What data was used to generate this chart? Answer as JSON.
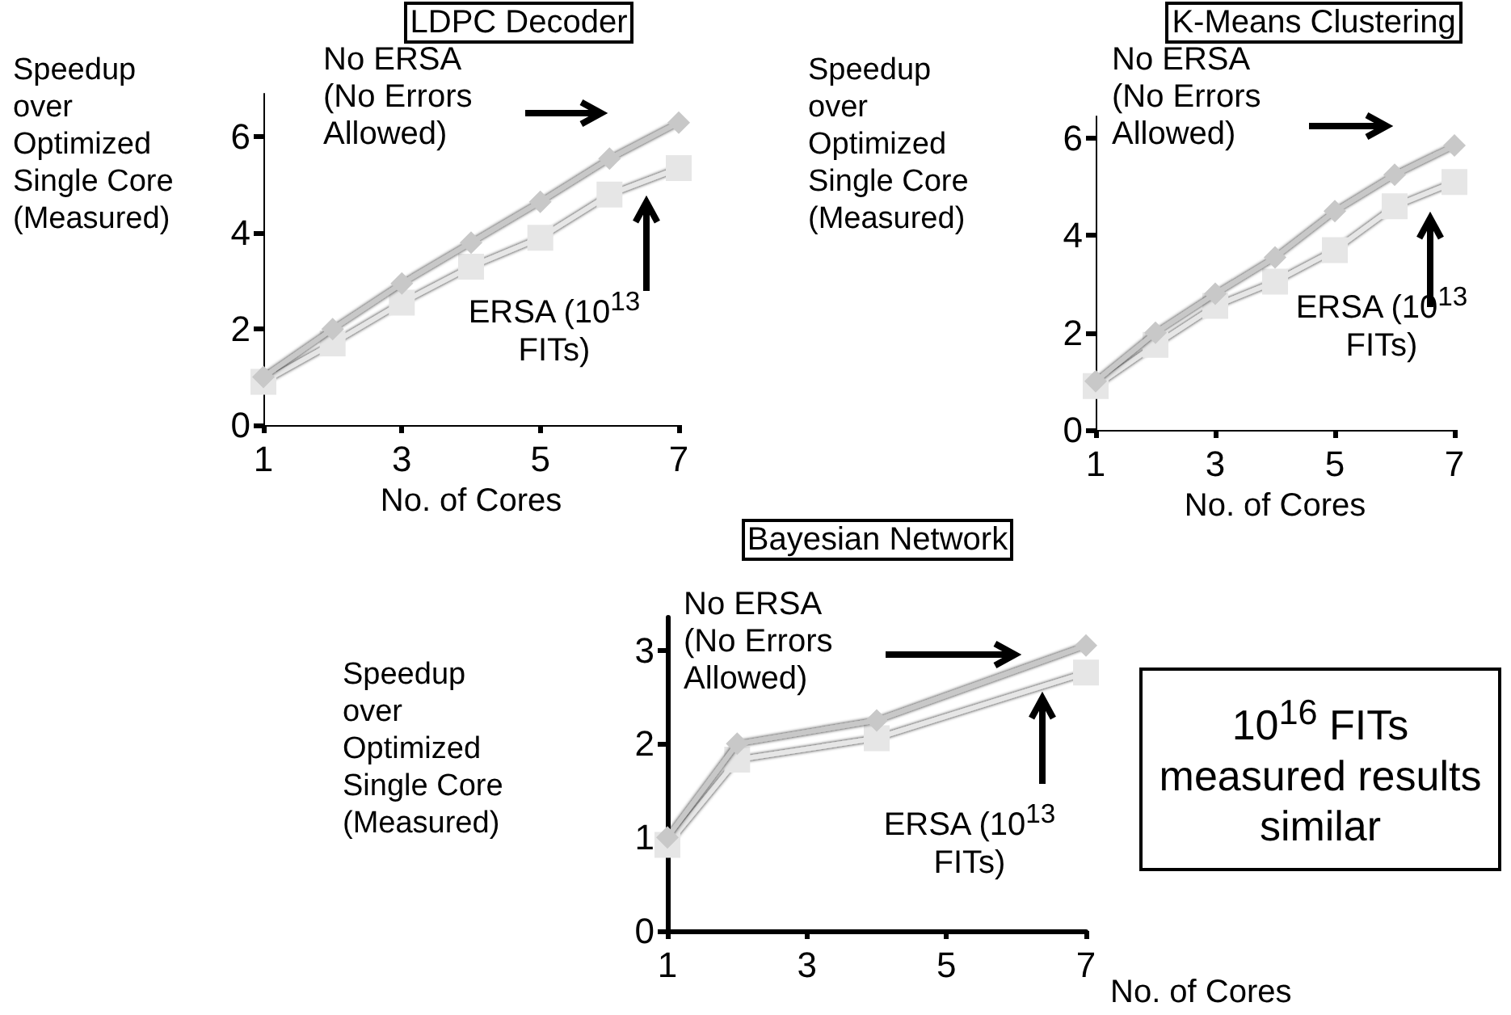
{
  "chart_data": [
    {
      "type": "line",
      "title": "LDPC Decoder",
      "xlabel": "No. of Cores",
      "ylabel": "Speedup over Optimized Single Core (Measured)",
      "x": [
        1,
        2,
        3,
        4,
        5,
        6,
        7
      ],
      "xlim": [
        1,
        7
      ],
      "xticks": [
        1,
        3,
        5,
        7
      ],
      "ylim": [
        0,
        6.9
      ],
      "yticks": [
        0,
        2,
        4,
        6
      ],
      "series": [
        {
          "color": "#c8c8c8",
          "marker": "diamond",
          "values": [
            1.0,
            2.0,
            2.95,
            3.8,
            4.65,
            5.55,
            6.3
          ]
        },
        {
          "color": "#e6e6e6",
          "marker": "square",
          "values": [
            0.9,
            1.7,
            2.55,
            3.3,
            3.9,
            4.8,
            5.35
          ]
        }
      ],
      "annotations": [
        "No ERSA (No Errors Allowed)",
        "ERSA (10$^{13}$ FITs)"
      ]
    },
    {
      "type": "line",
      "title": "K-Means Clustering",
      "xlabel": "No. of Cores",
      "ylabel": "Speedup over Optimized Single Core (Measured)",
      "x": [
        1,
        2,
        3,
        4,
        5,
        6,
        7
      ],
      "xlim": [
        1,
        7
      ],
      "xticks": [
        1,
        3,
        5,
        7
      ],
      "ylim": [
        0,
        6.45
      ],
      "yticks": [
        0,
        2,
        4,
        6
      ],
      "series": [
        {
          "color": "#c8c8c8",
          "marker": "diamond",
          "values": [
            1.0,
            2.0,
            2.8,
            3.55,
            4.5,
            5.25,
            5.85
          ]
        },
        {
          "color": "#e6e6e6",
          "marker": "square",
          "values": [
            0.9,
            1.75,
            2.55,
            3.05,
            3.7,
            4.6,
            5.1
          ]
        }
      ],
      "annotations": [
        "No ERSA (No Errors Allowed)",
        "ERSA (10$^{13}$ FITs)"
      ]
    },
    {
      "type": "line",
      "title": "Bayesian Network",
      "xlabel": "No. of Cores",
      "ylabel": "Speedup over Optimized Single Core (Measured)",
      "x": [
        1,
        2,
        4,
        7
      ],
      "xlim": [
        1,
        7
      ],
      "xticks": [
        1,
        3,
        5,
        7
      ],
      "ylim": [
        0,
        3.35
      ],
      "yticks": [
        0,
        1,
        2,
        3
      ],
      "series": [
        {
          "color": "#c8c8c8",
          "marker": "diamond",
          "values": [
            1.0,
            2.0,
            2.25,
            3.05
          ]
        },
        {
          "color": "#e6e6e6",
          "marker": "square",
          "values": [
            0.92,
            1.83,
            2.06,
            2.76
          ]
        }
      ],
      "annotations": [
        "No ERSA (No Errors Allowed)",
        "ERSA (10$^{13}$ FITs)",
        "10$^{16}$ FITs measured results similar"
      ]
    }
  ]
}
